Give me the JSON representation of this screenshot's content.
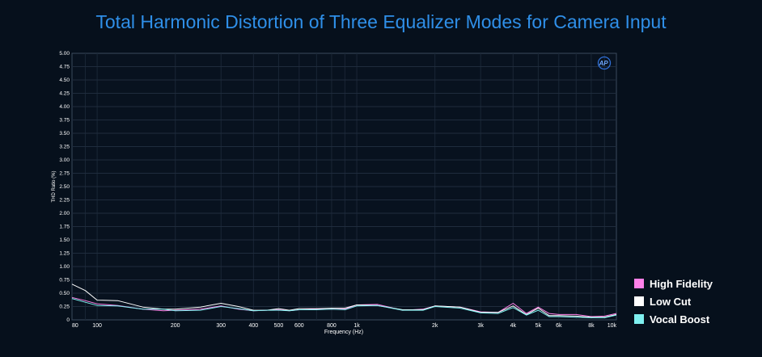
{
  "chart_data": {
    "type": "line",
    "title": "Total Harmonic Distortion of Three Equalizer Modes for Camera Input",
    "xlabel": "Frequency (Hz)",
    "ylabel": "THD Ratio (%)",
    "x_scale": "log",
    "xlim": [
      80,
      10000
    ],
    "ylim": [
      0,
      5
    ],
    "grid": true,
    "legend_position": "right-bottom",
    "logo_text": "AP",
    "y_ticks": [
      0,
      0.25,
      0.5,
      0.75,
      1.0,
      1.25,
      1.5,
      1.75,
      2.0,
      2.25,
      2.5,
      2.75,
      3.0,
      3.25,
      3.5,
      3.75,
      4.0,
      4.25,
      4.5,
      4.75,
      5.0
    ],
    "y_tick_labels": [
      "0",
      "0.25",
      "0.50",
      "0.75",
      "1.00",
      "1.25",
      "1.50",
      "1.75",
      "2.00",
      "2.25",
      "2.50",
      "2.75",
      "3.00",
      "3.25",
      "3.50",
      "3.75",
      "4.00",
      "4.25",
      "4.50",
      "4.75",
      "5.00"
    ],
    "x_ticks": [
      80,
      100,
      200,
      300,
      400,
      500,
      600,
      800,
      1000,
      2000,
      3000,
      4000,
      5000,
      6000,
      8000,
      10000
    ],
    "x_tick_labels": [
      "80",
      "100",
      "200",
      "300",
      "400",
      "500",
      "600",
      "800",
      "1k",
      "2k",
      "3k",
      "4k",
      "5k",
      "6k",
      "8k",
      "10k"
    ],
    "x": [
      80,
      90,
      100,
      120,
      150,
      180,
      200,
      250,
      300,
      350,
      400,
      450,
      500,
      550,
      600,
      700,
      800,
      900,
      1000,
      1200,
      1500,
      1800,
      2000,
      2500,
      3000,
      3500,
      4000,
      4500,
      5000,
      5500,
      6000,
      7000,
      8000,
      9000,
      10000
    ],
    "series": [
      {
        "name": "High Fidelity",
        "color": "#ff80e8",
        "values": [
          0.42,
          0.36,
          0.3,
          0.27,
          0.2,
          0.17,
          0.18,
          0.2,
          0.26,
          0.2,
          0.17,
          0.18,
          0.19,
          0.17,
          0.19,
          0.2,
          0.2,
          0.2,
          0.28,
          0.29,
          0.18,
          0.2,
          0.26,
          0.24,
          0.15,
          0.14,
          0.31,
          0.12,
          0.24,
          0.12,
          0.1,
          0.1,
          0.06,
          0.07,
          0.12
        ]
      },
      {
        "name": "Low Cut",
        "color": "#ffffff",
        "values": [
          0.67,
          0.55,
          0.37,
          0.36,
          0.24,
          0.2,
          0.2,
          0.24,
          0.31,
          0.25,
          0.18,
          0.18,
          0.21,
          0.18,
          0.21,
          0.21,
          0.22,
          0.22,
          0.28,
          0.27,
          0.19,
          0.19,
          0.26,
          0.24,
          0.14,
          0.14,
          0.26,
          0.1,
          0.22,
          0.08,
          0.08,
          0.07,
          0.05,
          0.05,
          0.1
        ]
      },
      {
        "name": "Vocal Boost",
        "color": "#7ff0f0",
        "values": [
          0.4,
          0.33,
          0.27,
          0.26,
          0.2,
          0.2,
          0.17,
          0.18,
          0.25,
          0.21,
          0.17,
          0.18,
          0.18,
          0.17,
          0.19,
          0.19,
          0.2,
          0.19,
          0.26,
          0.27,
          0.18,
          0.18,
          0.25,
          0.22,
          0.13,
          0.12,
          0.23,
          0.09,
          0.18,
          0.06,
          0.06,
          0.05,
          0.04,
          0.04,
          0.09
        ]
      }
    ]
  }
}
